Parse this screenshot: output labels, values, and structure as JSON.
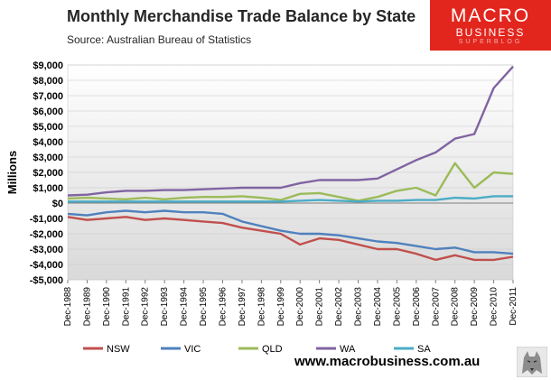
{
  "title": "Monthly Merchandise Trade Balance by State",
  "source": "Source:  Australian Bureau of Statistics",
  "logo": {
    "line1": "MACRO",
    "line2": "BUSINESS",
    "line3": "SUPERBLOG",
    "color": "#e2261d"
  },
  "website": "www.macrobusiness.com.au",
  "chart_data": {
    "type": "line",
    "title": "Monthly Merchandise Trade Balance by State",
    "ylabel": "Millions",
    "xlabel": "",
    "ylim": [
      -5000,
      9000
    ],
    "yticks": [
      9000,
      8000,
      7000,
      6000,
      5000,
      4000,
      3000,
      2000,
      1000,
      0,
      -1000,
      -2000,
      -3000,
      -4000,
      -5000
    ],
    "ytick_labels": [
      "$9,000",
      "$8,000",
      "$7,000",
      "$6,000",
      "$5,000",
      "$4,000",
      "$3,000",
      "$2,000",
      "$1,000",
      "$0",
      "-$1,000",
      "-$2,000",
      "-$3,000",
      "-$4,000",
      "-$5,000"
    ],
    "xticks": [
      "Dec-1988",
      "Dec-1989",
      "Dec-1990",
      "Dec-1991",
      "Dec-1992",
      "Dec-1993",
      "Dec-1994",
      "Dec-1995",
      "Dec-1996",
      "Dec-1997",
      "Dec-1998",
      "Dec-1999",
      "Dec-2000",
      "Dec-2001",
      "Dec-2002",
      "Dec-2003",
      "Dec-2004",
      "Dec-2005",
      "Dec-2006",
      "Dec-2007",
      "Dec-2008",
      "Dec-2009",
      "Dec-2010",
      "Dec-2011"
    ],
    "x": [
      "Dec-1988",
      "Dec-1989",
      "Dec-1990",
      "Dec-1991",
      "Dec-1992",
      "Dec-1993",
      "Dec-1994",
      "Dec-1995",
      "Dec-1996",
      "Dec-1997",
      "Dec-1998",
      "Dec-1999",
      "Dec-2000",
      "Dec-2001",
      "Dec-2002",
      "Dec-2003",
      "Dec-2004",
      "Dec-2005",
      "Dec-2006",
      "Dec-2007",
      "Dec-2008",
      "Dec-2009",
      "Dec-2010",
      "Dec-2011"
    ],
    "grid": true,
    "legend_position": "bottom",
    "series": [
      {
        "name": "NSW",
        "color": "#c0504d",
        "values": [
          -900,
          -1100,
          -1000,
          -900,
          -1100,
          -1000,
          -1100,
          -1200,
          -1300,
          -1600,
          -1800,
          -2000,
          -2700,
          -2300,
          -2400,
          -2700,
          -3000,
          -3000,
          -3300,
          -3700,
          -3400,
          -3700,
          -3700,
          -3500
        ]
      },
      {
        "name": "VIC",
        "color": "#4f81bd",
        "values": [
          -700,
          -800,
          -600,
          -500,
          -600,
          -500,
          -600,
          -600,
          -700,
          -1200,
          -1500,
          -1800,
          -2000,
          -2000,
          -2100,
          -2300,
          -2500,
          -2600,
          -2800,
          -3000,
          -2900,
          -3200,
          -3200,
          -3300
        ]
      },
      {
        "name": "QLD",
        "color": "#9bbb59",
        "values": [
          300,
          350,
          300,
          250,
          350,
          250,
          350,
          400,
          400,
          450,
          350,
          200,
          600,
          650,
          400,
          150,
          400,
          800,
          1000,
          500,
          2600,
          1000,
          2000,
          1900
        ]
      },
      {
        "name": "WA",
        "color": "#8064a2",
        "values": [
          500,
          550,
          700,
          800,
          800,
          850,
          850,
          900,
          950,
          1000,
          1000,
          1000,
          1300,
          1500,
          1500,
          1500,
          1600,
          2200,
          2800,
          3300,
          4200,
          4500,
          7500,
          8900
        ]
      },
      {
        "name": "SA",
        "color": "#4bacc6",
        "values": [
          100,
          100,
          100,
          100,
          100,
          100,
          100,
          100,
          100,
          100,
          100,
          100,
          150,
          200,
          150,
          100,
          150,
          150,
          200,
          200,
          350,
          300,
          450,
          450
        ]
      }
    ]
  }
}
